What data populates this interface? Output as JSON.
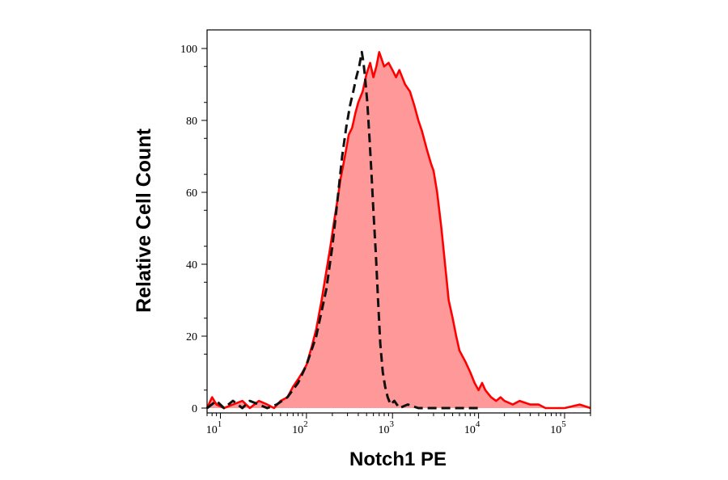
{
  "chart_data": {
    "type": "area",
    "xlabel": "Notch1 PE",
    "ylabel": "Relative Cell Count",
    "x_scale": "log",
    "xlim": [
      7,
      200000
    ],
    "ylim": [
      0,
      100
    ],
    "grid": false,
    "x_ticks": [
      {
        "value": 10,
        "base": "10",
        "exp": "1"
      },
      {
        "value": 100,
        "base": "10",
        "exp": "2"
      },
      {
        "value": 1000,
        "base": "10",
        "exp": "3"
      },
      {
        "value": 10000,
        "base": "10",
        "exp": "4"
      },
      {
        "value": 100000,
        "base": "10",
        "exp": "5"
      }
    ],
    "y_ticks": [
      {
        "value": 0,
        "label": "0"
      },
      {
        "value": 20,
        "label": "20"
      },
      {
        "value": 40,
        "label": "40"
      },
      {
        "value": 60,
        "label": "60"
      },
      {
        "value": 80,
        "label": "80"
      },
      {
        "value": 100,
        "label": "100"
      }
    ],
    "series": [
      {
        "style": "filled",
        "color": "#ff0000",
        "fill": "#ff9999",
        "points": [
          [
            7,
            0
          ],
          [
            8,
            3
          ],
          [
            9,
            1
          ],
          [
            11,
            0
          ],
          [
            14,
            1
          ],
          [
            18,
            2
          ],
          [
            22,
            0
          ],
          [
            28,
            2
          ],
          [
            35,
            1
          ],
          [
            42,
            0
          ],
          [
            50,
            2
          ],
          [
            60,
            3
          ],
          [
            70,
            6
          ],
          [
            80,
            8
          ],
          [
            90,
            10
          ],
          [
            100,
            12
          ],
          [
            115,
            17
          ],
          [
            130,
            22
          ],
          [
            150,
            30
          ],
          [
            170,
            38
          ],
          [
            190,
            45
          ],
          [
            210,
            52
          ],
          [
            230,
            58
          ],
          [
            250,
            64
          ],
          [
            270,
            68
          ],
          [
            290,
            72
          ],
          [
            310,
            76
          ],
          [
            340,
            78
          ],
          [
            370,
            82
          ],
          [
            400,
            85
          ],
          [
            450,
            88
          ],
          [
            500,
            93
          ],
          [
            550,
            96
          ],
          [
            600,
            92
          ],
          [
            650,
            95
          ],
          [
            700,
            99
          ],
          [
            750,
            97
          ],
          [
            800,
            95
          ],
          [
            900,
            96
          ],
          [
            1000,
            94
          ],
          [
            1100,
            92
          ],
          [
            1200,
            94
          ],
          [
            1400,
            90
          ],
          [
            1600,
            88
          ],
          [
            1800,
            84
          ],
          [
            2000,
            80
          ],
          [
            2200,
            77
          ],
          [
            2500,
            72
          ],
          [
            2800,
            68
          ],
          [
            3000,
            66
          ],
          [
            3300,
            60
          ],
          [
            3700,
            50
          ],
          [
            4000,
            42
          ],
          [
            4500,
            30
          ],
          [
            5000,
            25
          ],
          [
            5500,
            20
          ],
          [
            6000,
            16
          ],
          [
            7000,
            13
          ],
          [
            8000,
            10
          ],
          [
            9000,
            7
          ],
          [
            10000,
            5
          ],
          [
            11000,
            7
          ],
          [
            12000,
            5
          ],
          [
            14000,
            3
          ],
          [
            16000,
            2
          ],
          [
            18000,
            3
          ],
          [
            20000,
            2
          ],
          [
            25000,
            1
          ],
          [
            30000,
            2
          ],
          [
            40000,
            1
          ],
          [
            50000,
            1
          ],
          [
            60000,
            0
          ],
          [
            100000,
            0
          ],
          [
            150000,
            1
          ],
          [
            200000,
            0
          ]
        ]
      },
      {
        "style": "dashed",
        "color": "#111111",
        "points": [
          [
            7,
            0
          ],
          [
            9,
            2
          ],
          [
            11,
            0
          ],
          [
            14,
            2
          ],
          [
            18,
            0
          ],
          [
            22,
            2
          ],
          [
            28,
            1
          ],
          [
            35,
            0
          ],
          [
            45,
            1
          ],
          [
            60,
            3
          ],
          [
            80,
            7
          ],
          [
            100,
            12
          ],
          [
            130,
            20
          ],
          [
            170,
            33
          ],
          [
            200,
            45
          ],
          [
            230,
            58
          ],
          [
            260,
            70
          ],
          [
            290,
            78
          ],
          [
            320,
            84
          ],
          [
            350,
            88
          ],
          [
            380,
            92
          ],
          [
            410,
            95
          ],
          [
            440,
            99
          ],
          [
            460,
            96
          ],
          [
            480,
            92
          ],
          [
            510,
            85
          ],
          [
            540,
            75
          ],
          [
            570,
            65
          ],
          [
            600,
            55
          ],
          [
            640,
            43
          ],
          [
            680,
            30
          ],
          [
            720,
            18
          ],
          [
            770,
            10
          ],
          [
            820,
            6
          ],
          [
            880,
            3
          ],
          [
            950,
            1
          ],
          [
            1050,
            2
          ],
          [
            1200,
            0
          ],
          [
            1500,
            1
          ],
          [
            2000,
            0
          ],
          [
            3000,
            0
          ],
          [
            10000,
            0
          ]
        ]
      }
    ]
  }
}
